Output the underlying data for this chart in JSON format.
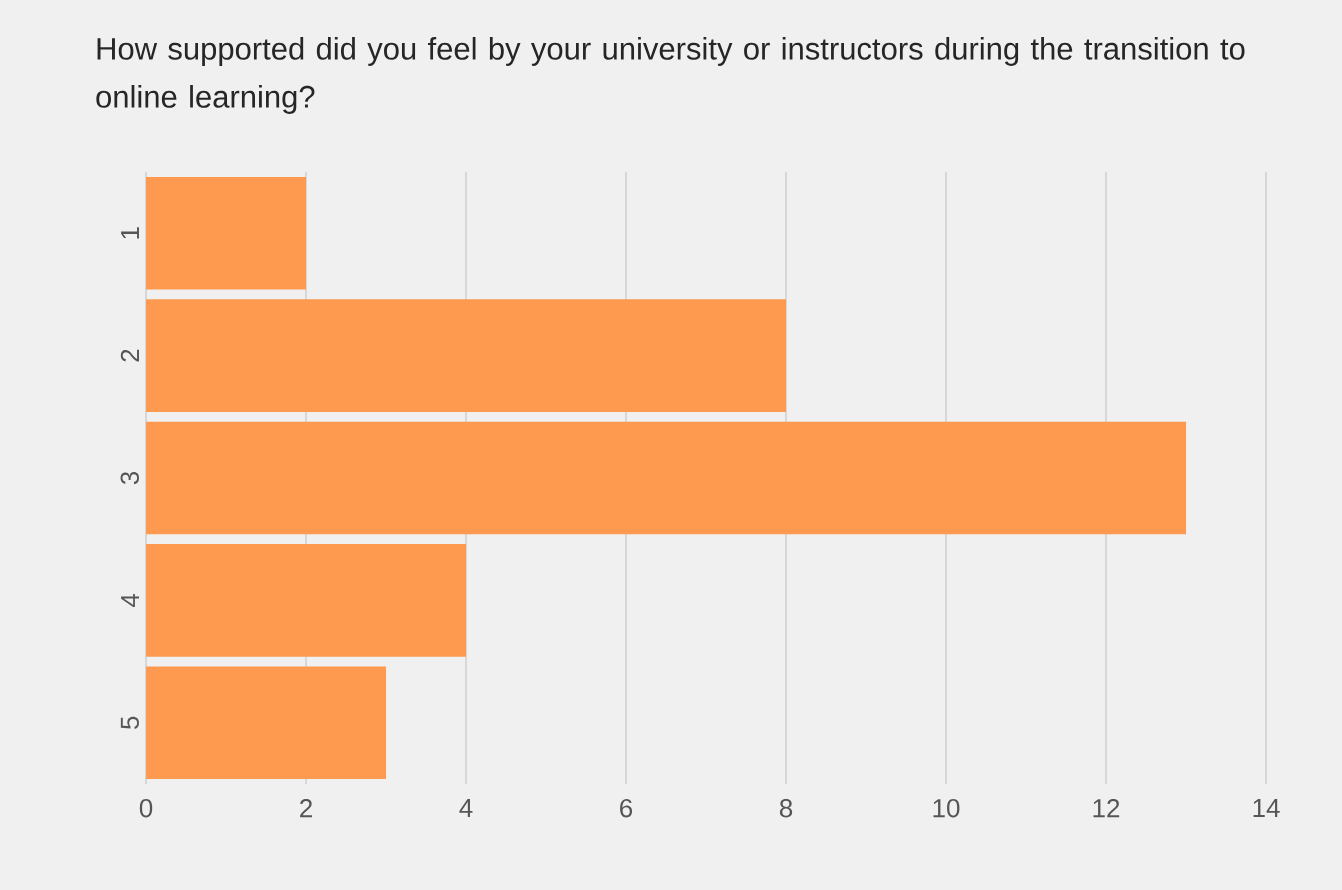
{
  "chart_data": {
    "type": "bar",
    "orientation": "horizontal",
    "title": "How supported did you feel by your university or instructors during the transition to online learning?",
    "categories": [
      "1",
      "2",
      "3",
      "4",
      "5"
    ],
    "values": [
      2,
      8,
      13,
      4,
      3
    ],
    "color": "#fd9a50",
    "xlim": [
      0,
      14
    ],
    "xticks": [
      0,
      2,
      4,
      6,
      8,
      10,
      12,
      14
    ],
    "grid": "x"
  }
}
